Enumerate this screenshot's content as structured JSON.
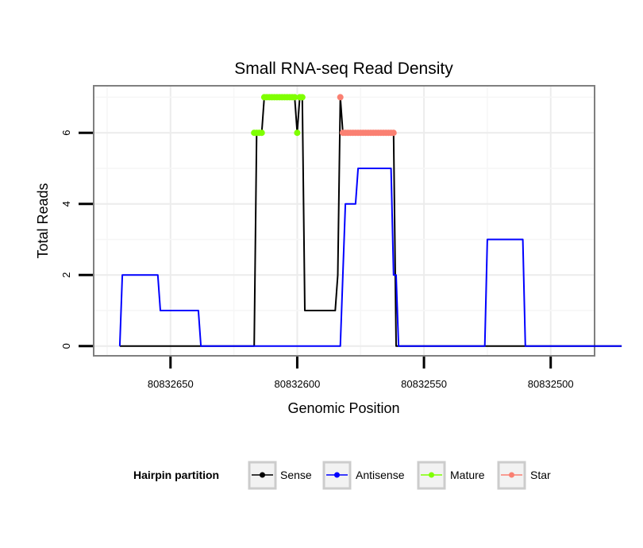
{
  "chart_data": {
    "type": "line",
    "title": "Small RNA-seq Read Density",
    "xlabel": "Genomic Position",
    "ylabel": "Total Reads",
    "x_reversed": true,
    "xlim": [
      80832680,
      80832483
    ],
    "ylim": [
      -0.25,
      7.3
    ],
    "x_ticks": [
      80832650,
      80832600,
      80832550,
      80832500
    ],
    "x_tick_labels": [
      "80832650",
      "80832600",
      "80832550",
      "80832500"
    ],
    "y_ticks": [
      0,
      2,
      4,
      6
    ],
    "y_tick_labels": [
      "0",
      "2",
      "4",
      "6"
    ],
    "grid": true,
    "legend_position": "bottom",
    "legend": {
      "title": "Hairpin partition",
      "entries": [
        {
          "name": "Sense",
          "color": "#000000"
        },
        {
          "name": "Antisense",
          "color": "#0000ff"
        },
        {
          "name": "Mature",
          "color": "#7fff00"
        },
        {
          "name": "Star",
          "color": "#fa8072"
        }
      ]
    },
    "series": [
      {
        "name": "Sense",
        "kind": "line",
        "color": "#000000",
        "points": [
          [
            80832670,
            0
          ],
          [
            80832617,
            0
          ],
          [
            80832616,
            6
          ],
          [
            80832614,
            6
          ],
          [
            80832613,
            7
          ],
          [
            80832601,
            7
          ],
          [
            80832600,
            6
          ],
          [
            80832599,
            7
          ],
          [
            80832598,
            7
          ],
          [
            80832597,
            1
          ],
          [
            80832585,
            1
          ],
          [
            80832584,
            2
          ],
          [
            80832583,
            7
          ],
          [
            80832582,
            6
          ],
          [
            80832562,
            6
          ],
          [
            80832561,
            0
          ],
          [
            80832472,
            0
          ]
        ]
      },
      {
        "name": "Antisense",
        "kind": "line",
        "color": "#0000ff",
        "points": [
          [
            80832670,
            0
          ],
          [
            80832669,
            2
          ],
          [
            80832655,
            2
          ],
          [
            80832654,
            1
          ],
          [
            80832639,
            1
          ],
          [
            80832638,
            0
          ],
          [
            80832583,
            0
          ],
          [
            80832582,
            2
          ],
          [
            80832581,
            4
          ],
          [
            80832577,
            4
          ],
          [
            80832576,
            5
          ],
          [
            80832563,
            5
          ],
          [
            80832562,
            2
          ],
          [
            80832561,
            2
          ],
          [
            80832560,
            0
          ],
          [
            80832526,
            0
          ],
          [
            80832525,
            3
          ],
          [
            80832511,
            3
          ],
          [
            80832510,
            0
          ],
          [
            80832472,
            0
          ]
        ]
      },
      {
        "name": "Mature",
        "kind": "points",
        "color": "#7fff00",
        "points": [
          [
            80832617,
            6
          ],
          [
            80832616,
            6
          ],
          [
            80832615,
            6
          ],
          [
            80832614,
            6
          ],
          [
            80832613,
            7
          ],
          [
            80832612,
            7
          ],
          [
            80832611,
            7
          ],
          [
            80832610,
            7
          ],
          [
            80832609,
            7
          ],
          [
            80832608,
            7
          ],
          [
            80832607,
            7
          ],
          [
            80832606,
            7
          ],
          [
            80832605,
            7
          ],
          [
            80832604,
            7
          ],
          [
            80832603,
            7
          ],
          [
            80832602,
            7
          ],
          [
            80832601,
            7
          ],
          [
            80832600,
            6
          ],
          [
            80832599,
            7
          ],
          [
            80832598,
            7
          ]
        ]
      },
      {
        "name": "Star",
        "kind": "points",
        "color": "#fa8072",
        "points": [
          [
            80832583,
            7
          ],
          [
            80832582,
            6
          ],
          [
            80832581,
            6
          ],
          [
            80832580,
            6
          ],
          [
            80832579,
            6
          ],
          [
            80832578,
            6
          ],
          [
            80832577,
            6
          ],
          [
            80832576,
            6
          ],
          [
            80832575,
            6
          ],
          [
            80832574,
            6
          ],
          [
            80832573,
            6
          ],
          [
            80832572,
            6
          ],
          [
            80832571,
            6
          ],
          [
            80832570,
            6
          ],
          [
            80832569,
            6
          ],
          [
            80832568,
            6
          ],
          [
            80832567,
            6
          ],
          [
            80832566,
            6
          ],
          [
            80832565,
            6
          ],
          [
            80832564,
            6
          ],
          [
            80832563,
            6
          ],
          [
            80832562,
            6
          ]
        ]
      }
    ]
  }
}
